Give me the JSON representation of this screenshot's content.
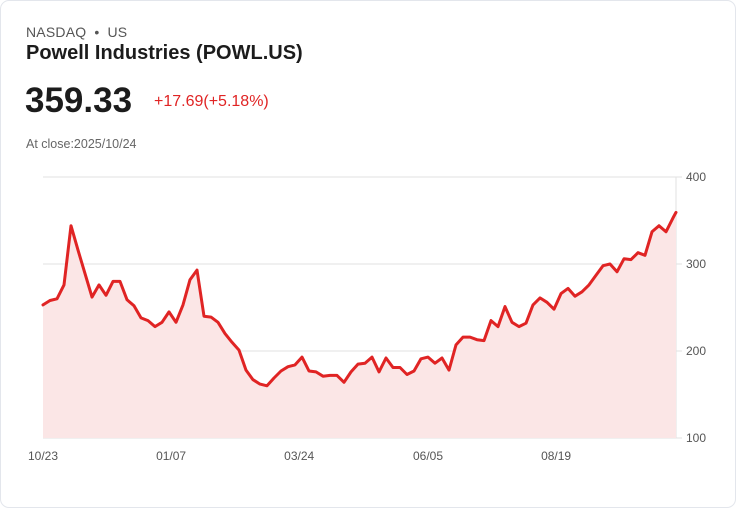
{
  "header": {
    "exchange": "NASDAQ",
    "separator": "•",
    "market": "US",
    "title": "Powell Industries (POWL.US)",
    "price": "359.33",
    "change": "+17.69(+5.18%)",
    "close_label": "At close:2025/10/24"
  },
  "colors": {
    "line": "#e02424",
    "fill": "#fbe6e6",
    "grid": "#e2e2e2",
    "text": "#1c1c1c"
  },
  "chart_data": {
    "type": "area",
    "title": "Powell Industries (POWL.US)",
    "xlabel": "",
    "ylabel": "",
    "ylim": [
      100,
      400
    ],
    "yticks": [
      {
        "value": 400,
        "label": "400"
      },
      {
        "value": 300,
        "label": "300"
      },
      {
        "value": 200,
        "label": "200"
      },
      {
        "value": 100,
        "label": "100"
      }
    ],
    "xlim": [
      0,
      90.43
    ],
    "xticks": [
      {
        "value": 0,
        "label": "10/23"
      },
      {
        "value": 18.3,
        "label": "01/07"
      },
      {
        "value": 36.6,
        "label": "03/24"
      },
      {
        "value": 55,
        "label": "06/05"
      },
      {
        "value": 73.3,
        "label": "08/19"
      }
    ],
    "grid": true,
    "values": [
      253,
      258,
      260,
      276,
      344,
      316,
      289,
      262,
      276,
      264,
      280,
      280,
      259,
      252,
      238,
      235,
      228,
      233,
      245,
      233,
      253,
      282,
      293,
      240,
      239,
      233,
      220,
      210,
      201,
      178,
      167,
      162,
      160,
      169,
      177,
      182,
      184,
      193,
      177,
      176,
      171,
      172,
      172,
      164,
      176,
      185,
      186,
      193,
      176,
      192,
      181,
      181,
      173,
      177,
      191,
      193,
      186,
      192,
      178,
      207,
      216,
      216,
      213,
      212,
      235,
      228,
      251,
      233,
      228,
      232,
      253,
      261,
      256,
      248,
      266,
      272,
      263,
      268,
      276,
      287,
      298,
      300,
      291,
      306,
      305,
      313,
      310,
      337,
      344,
      337,
      353,
      359.33
    ]
  }
}
